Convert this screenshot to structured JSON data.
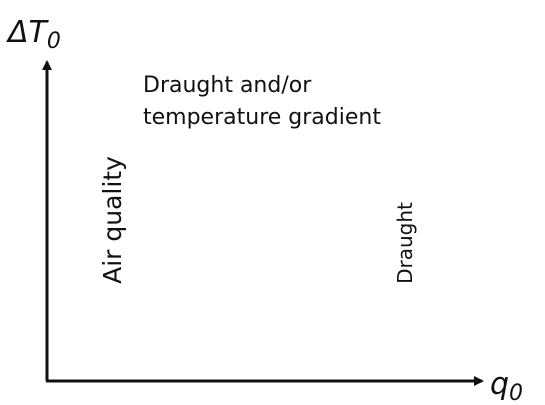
{
  "axes": {
    "y_label": {
      "symbol": "ΔT",
      "subscript": "0"
    },
    "x_label": {
      "symbol": "q",
      "subscript": "0"
    }
  },
  "regions": [
    {
      "lines": [
        "Draught and/or",
        "temperature gradient"
      ]
    },
    {
      "lines": [
        "Air quality"
      ]
    },
    {
      "lines": [
        "Draught"
      ]
    }
  ]
}
